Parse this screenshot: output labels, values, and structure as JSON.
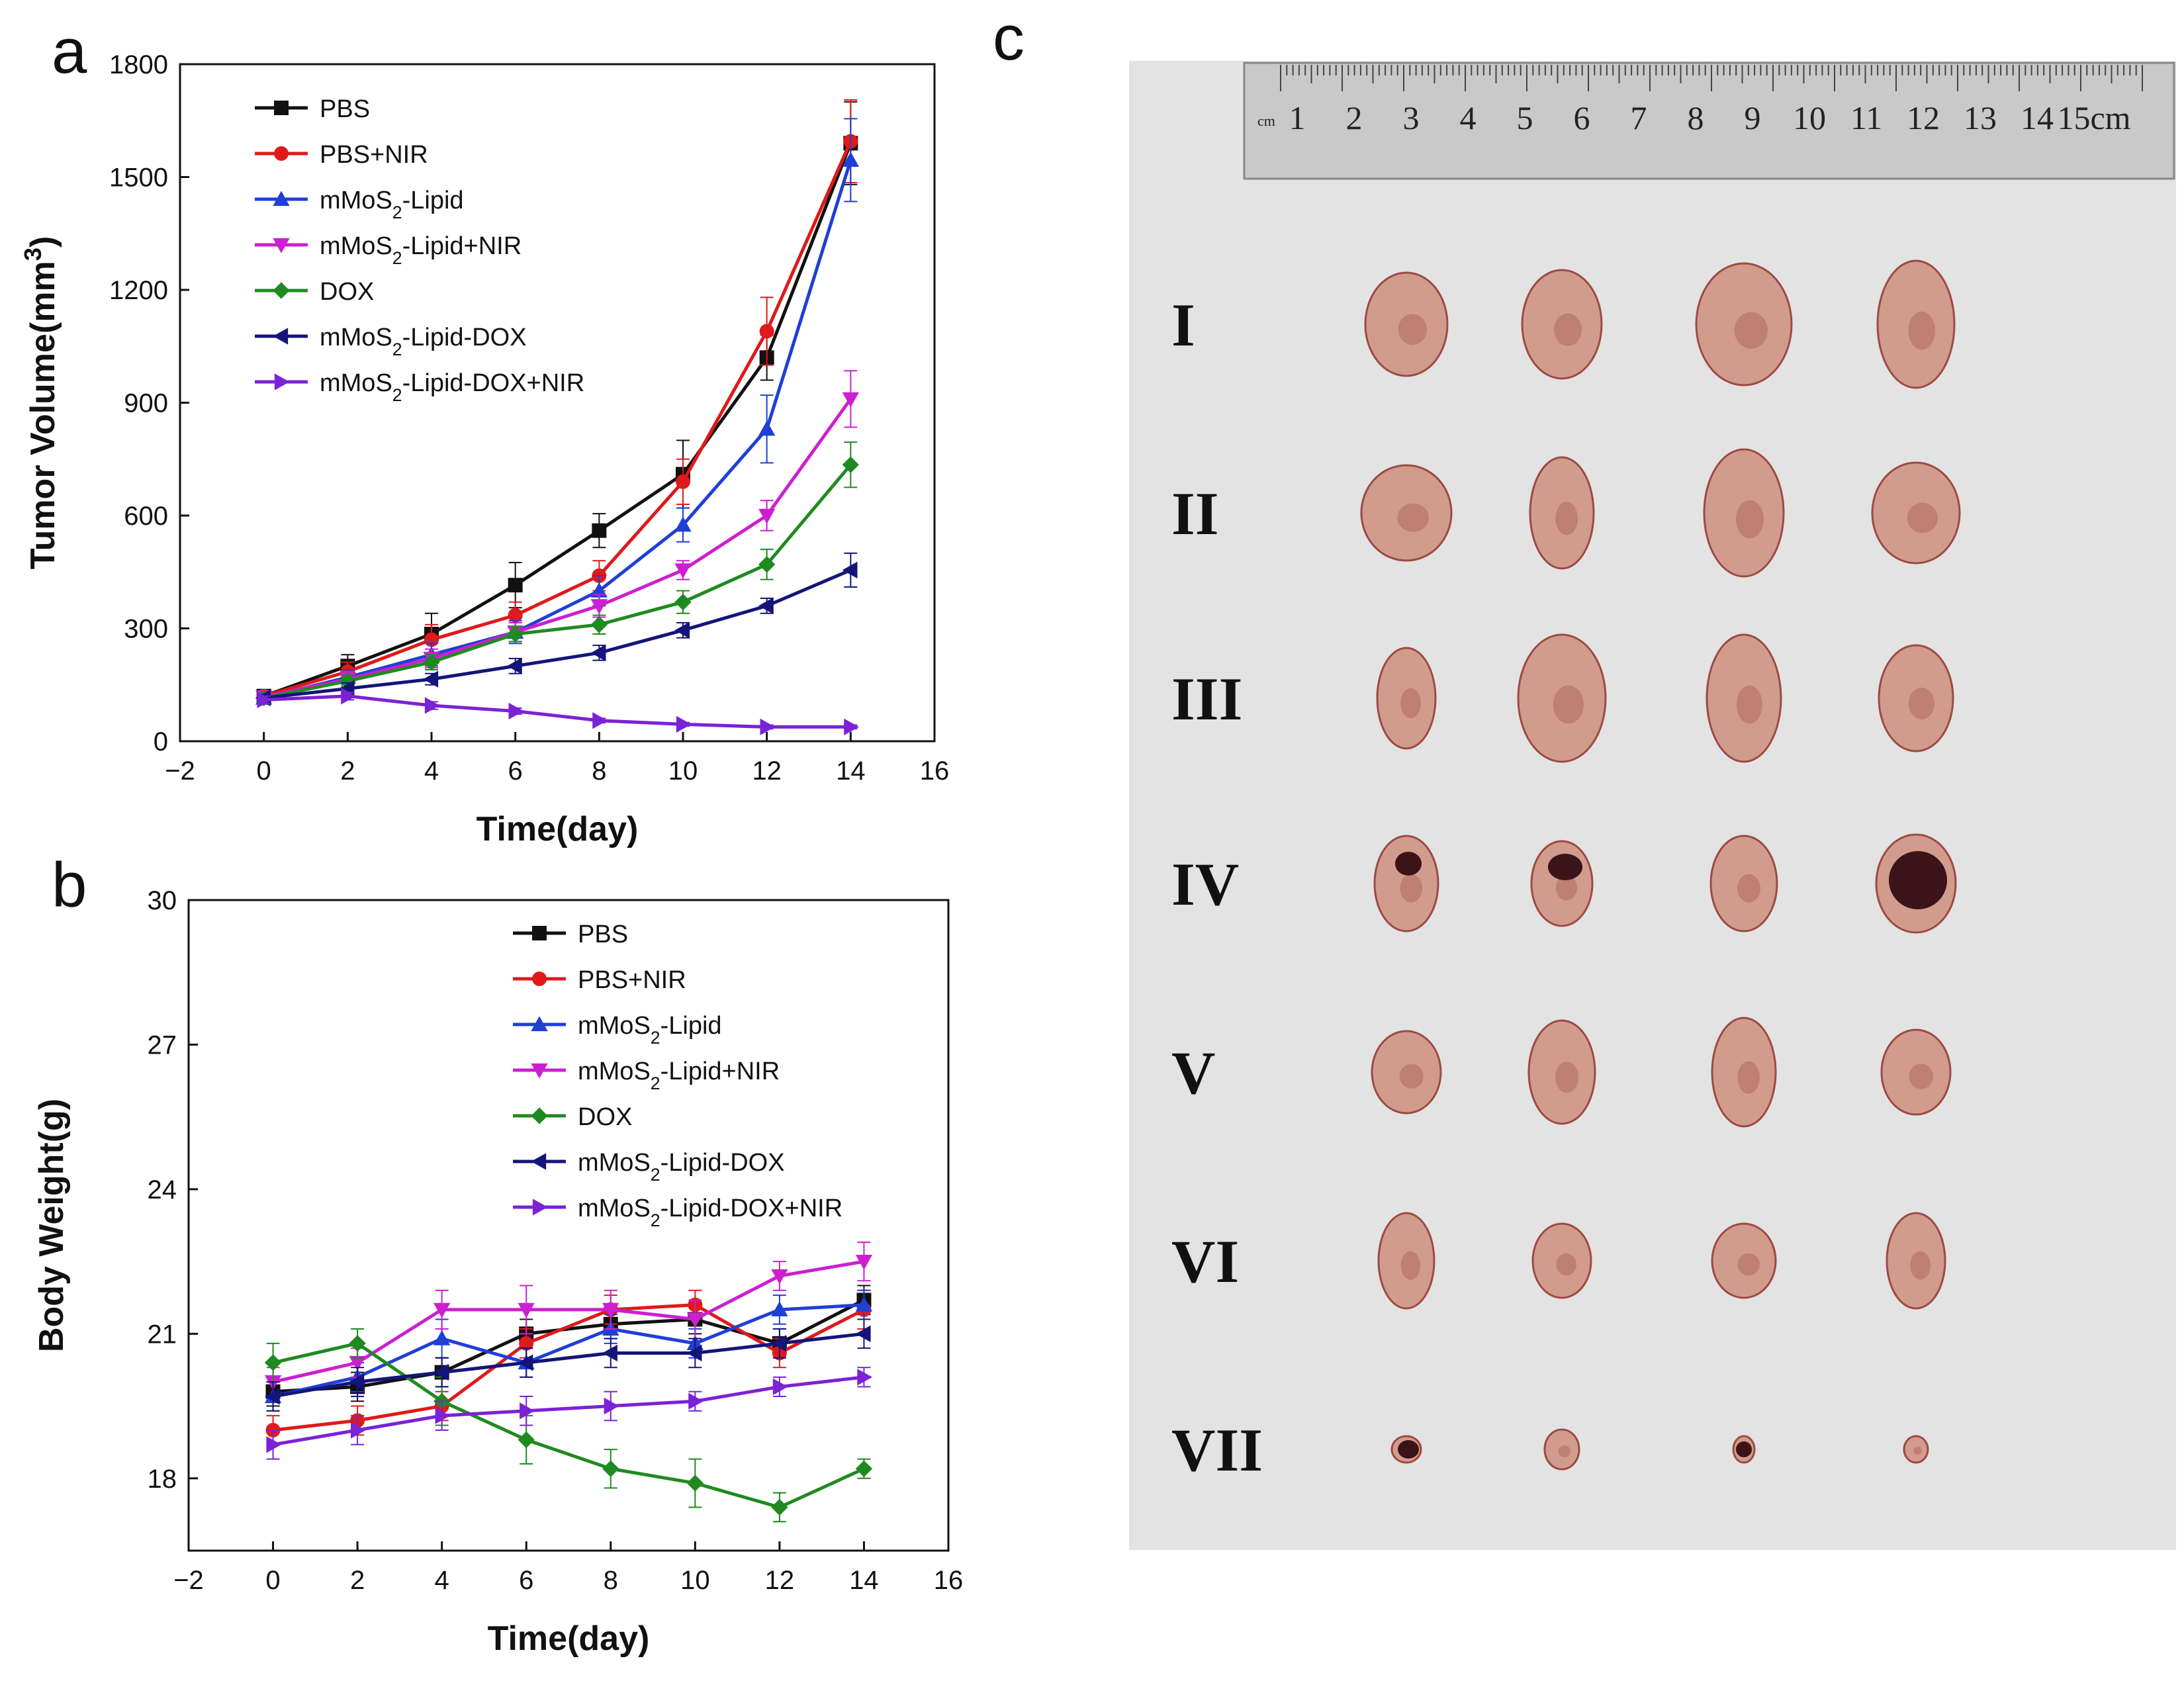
{
  "panels": {
    "a": "a",
    "b": "b",
    "c": "c"
  },
  "legend_entries": [
    {
      "key": "PBS",
      "parts": [
        [
          "PBS",
          ""
        ]
      ],
      "color": "#111111",
      "marker": "square"
    },
    {
      "key": "PBS+NIR",
      "parts": [
        [
          "PBS+NIR",
          ""
        ]
      ],
      "color": "#e0191a",
      "marker": "circle"
    },
    {
      "key": "mMoS2-Lipid",
      "parts": [
        [
          "mMoS",
          ""
        ],
        [
          "2",
          "sub"
        ],
        [
          "-Lipid",
          ""
        ]
      ],
      "color": "#1f3fd6",
      "marker": "triangle-up"
    },
    {
      "key": "mMoS2-Lipid+NIR",
      "parts": [
        [
          "mMoS",
          ""
        ],
        [
          "2",
          "sub"
        ],
        [
          "-Lipid+NIR",
          ""
        ]
      ],
      "color": "#cc1fd0",
      "marker": "triangle-down"
    },
    {
      "key": "DOX",
      "parts": [
        [
          "DOX",
          ""
        ]
      ],
      "color": "#1f8a1f",
      "marker": "diamond"
    },
    {
      "key": "mMoS2-Lipid-DOX",
      "parts": [
        [
          "mMoS",
          ""
        ],
        [
          "2",
          "sub"
        ],
        [
          "-Lipid-DOX",
          ""
        ]
      ],
      "color": "#14147a",
      "marker": "triangle-left"
    },
    {
      "key": "mMoS2-Lipid-DOX+NIR",
      "parts": [
        [
          "mMoS",
          ""
        ],
        [
          "2",
          "sub"
        ],
        [
          "-Lipid-DOX+NIR",
          ""
        ]
      ],
      "color": "#7a22d6",
      "marker": "triangle-right"
    }
  ],
  "chart_data": [
    {
      "id": "a",
      "type": "line",
      "title": "",
      "xlabel": "Time(day)",
      "ylabel_parts": [
        [
          "Tumor Volume(mm",
          ""
        ],
        [
          "3",
          "sup"
        ],
        [
          ")",
          ""
        ]
      ],
      "xlim": [
        -2,
        16
      ],
      "ylim": [
        0,
        1800
      ],
      "xticks": [
        -2,
        0,
        2,
        4,
        6,
        8,
        10,
        12,
        14,
        16
      ],
      "yticks": [
        0,
        300,
        600,
        900,
        1200,
        1500,
        1800
      ],
      "legend_position": "top-left",
      "x": [
        0,
        2,
        4,
        6,
        8,
        10,
        12,
        14
      ],
      "series": [
        {
          "name": "PBS",
          "values": [
            120,
            200,
            285,
            415,
            560,
            710,
            1020,
            1590
          ],
          "errors": [
            15,
            30,
            55,
            60,
            45,
            90,
            60,
            110
          ]
        },
        {
          "name": "PBS+NIR",
          "values": [
            120,
            185,
            270,
            335,
            440,
            690,
            1090,
            1595
          ],
          "errors": [
            10,
            25,
            40,
            35,
            40,
            60,
            90,
            110
          ]
        },
        {
          "name": "mMoS2-Lipid",
          "values": [
            115,
            170,
            230,
            290,
            400,
            575,
            830,
            1545
          ],
          "errors": [
            10,
            20,
            30,
            30,
            40,
            45,
            90,
            110
          ]
        },
        {
          "name": "mMoS2-Lipid+NIR",
          "values": [
            118,
            165,
            220,
            290,
            360,
            455,
            600,
            910
          ],
          "errors": [
            10,
            20,
            25,
            25,
            30,
            25,
            40,
            75
          ]
        },
        {
          "name": "DOX",
          "values": [
            115,
            160,
            210,
            285,
            310,
            370,
            470,
            735
          ],
          "errors": [
            10,
            15,
            20,
            20,
            25,
            30,
            40,
            60
          ]
        },
        {
          "name": "mMoS2-Lipid-DOX",
          "values": [
            115,
            140,
            165,
            200,
            235,
            295,
            360,
            455
          ],
          "errors": [
            10,
            15,
            15,
            20,
            20,
            20,
            20,
            45
          ]
        },
        {
          "name": "mMoS2-Lipid-DOX+NIR",
          "values": [
            110,
            120,
            95,
            80,
            55,
            45,
            38,
            38
          ],
          "errors": [
            10,
            10,
            10,
            8,
            6,
            5,
            5,
            5
          ]
        }
      ]
    },
    {
      "id": "b",
      "type": "line",
      "title": "",
      "xlabel": "Time(day)",
      "ylabel_parts": [
        [
          "Body Weight(g)",
          ""
        ]
      ],
      "xlim": [
        -2,
        16
      ],
      "ylim": [
        16.5,
        30
      ],
      "xticks": [
        -2,
        0,
        2,
        4,
        6,
        8,
        10,
        12,
        14,
        16
      ],
      "yticks": [
        18,
        21,
        24,
        27,
        30
      ],
      "legend_position": "top-right",
      "x": [
        0,
        2,
        4,
        6,
        8,
        10,
        12,
        14
      ],
      "series": [
        {
          "name": "PBS",
          "values": [
            19.8,
            19.9,
            20.2,
            21.0,
            21.2,
            21.3,
            20.8,
            21.7
          ],
          "errors": [
            0.3,
            0.3,
            0.3,
            0.3,
            0.3,
            0.3,
            0.3,
            0.3
          ]
        },
        {
          "name": "PBS+NIR",
          "values": [
            19.0,
            19.2,
            19.5,
            20.8,
            21.5,
            21.6,
            20.6,
            21.5
          ],
          "errors": [
            0.3,
            0.3,
            0.3,
            0.3,
            0.3,
            0.3,
            0.3,
            0.4
          ]
        },
        {
          "name": "mMoS2-Lipid",
          "values": [
            19.7,
            20.1,
            20.9,
            20.4,
            21.1,
            20.8,
            21.5,
            21.6
          ],
          "errors": [
            0.3,
            0.3,
            0.4,
            0.3,
            0.3,
            0.3,
            0.3,
            0.3
          ]
        },
        {
          "name": "mMoS2-Lipid+NIR",
          "values": [
            20.0,
            20.4,
            21.5,
            21.5,
            21.5,
            21.3,
            22.2,
            22.5
          ],
          "errors": [
            0.3,
            0.3,
            0.4,
            0.5,
            0.4,
            0.4,
            0.3,
            0.4
          ]
        },
        {
          "name": "DOX",
          "values": [
            20.4,
            20.8,
            19.6,
            18.8,
            18.2,
            17.9,
            17.4,
            18.2
          ],
          "errors": [
            0.4,
            0.3,
            0.5,
            0.5,
            0.4,
            0.5,
            0.3,
            0.2
          ]
        },
        {
          "name": "mMoS2-Lipid-DOX",
          "values": [
            19.7,
            20.0,
            20.2,
            20.4,
            20.6,
            20.6,
            20.8,
            21.0
          ],
          "errors": [
            0.3,
            0.3,
            0.3,
            0.3,
            0.3,
            0.3,
            0.3,
            0.3
          ]
        },
        {
          "name": "mMoS2-Lipid-DOX+NIR",
          "values": [
            18.7,
            19.0,
            19.3,
            19.4,
            19.5,
            19.6,
            19.9,
            20.1
          ],
          "errors": [
            0.3,
            0.3,
            0.3,
            0.3,
            0.3,
            0.2,
            0.2,
            0.2
          ]
        }
      ]
    }
  ],
  "photo": {
    "group_labels": [
      "I",
      "II",
      "III",
      "IV",
      "V",
      "VI",
      "VII"
    ],
    "ruler_unit_left": "cm",
    "ruler_numbers": [
      "1",
      "2",
      "3",
      "4",
      "5",
      "6",
      "7",
      "8",
      "9",
      "10",
      "11",
      "12",
      "13",
      "14",
      "15cm"
    ],
    "colors": {
      "background": "#e3e3e3",
      "tumor": "#d29c8c",
      "tumor_dark": "#9d4a45",
      "necrosis": "#3a1418",
      "ruler": "#c9c9c9"
    }
  }
}
